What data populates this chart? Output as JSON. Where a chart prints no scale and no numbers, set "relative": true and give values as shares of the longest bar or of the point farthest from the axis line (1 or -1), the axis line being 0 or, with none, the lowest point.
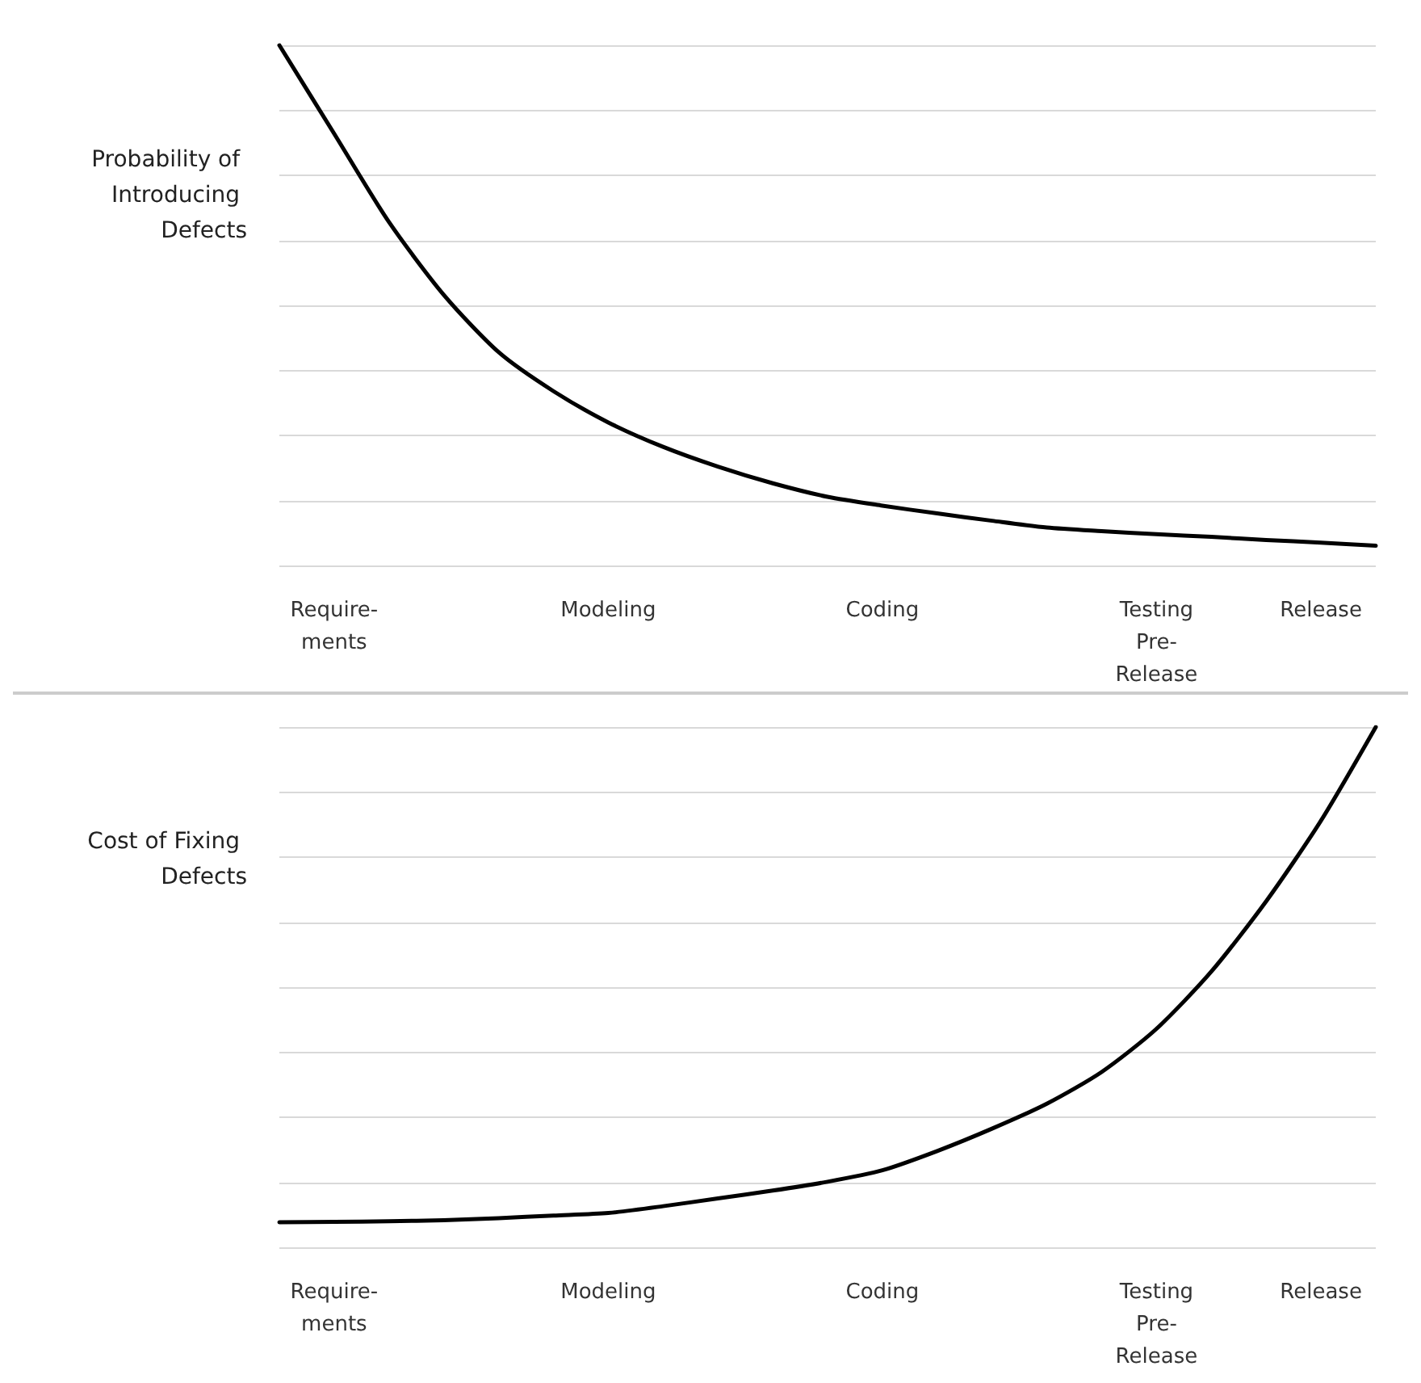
{
  "chart_data": [
    {
      "type": "line",
      "ylabel": "Probability of Introducing Defects",
      "relative": true,
      "grid": "y",
      "tick_labels": "x",
      "marker": "none",
      "line_style": "solid",
      "categories": [
        null,
        "Require-\nments",
        null,
        null,
        null,
        null,
        "Modeling",
        null,
        null,
        null,
        null,
        "Coding",
        null,
        null,
        null,
        null,
        "Testing\nPre-\nRelease",
        null,
        null,
        "Release",
        null
      ],
      "series": [
        {
          "color": "#000000",
          "values": [
            1,
            0.83,
            0.66,
            0.52,
            0.41,
            0.335,
            0.275,
            0.228,
            0.19,
            0.158,
            0.132,
            0.115,
            0.1,
            0.086,
            0.073,
            0.066,
            0.06,
            0.055,
            0.049,
            0.044,
            0.038
          ]
        }
      ]
    },
    {
      "type": "line",
      "ylabel": "Cost of Fixing Defects",
      "relative": true,
      "grid": "y",
      "tick_labels": "x",
      "marker": "none",
      "line_style": "solid",
      "categories": [
        null,
        "Require-\nments",
        null,
        null,
        null,
        null,
        "Modeling",
        null,
        null,
        null,
        null,
        "Coding",
        null,
        null,
        null,
        null,
        "Testing\nPre-\nRelease",
        null,
        null,
        "Release",
        null
      ],
      "series": [
        {
          "color": "#000000",
          "values": [
            0.048,
            0.049,
            0.05,
            0.052,
            0.056,
            0.061,
            0.066,
            0.079,
            0.094,
            0.109,
            0.126,
            0.148,
            0.185,
            0.228,
            0.276,
            0.337,
            0.42,
            0.53,
            0.665,
            0.82,
            1
          ]
        }
      ]
    }
  ]
}
